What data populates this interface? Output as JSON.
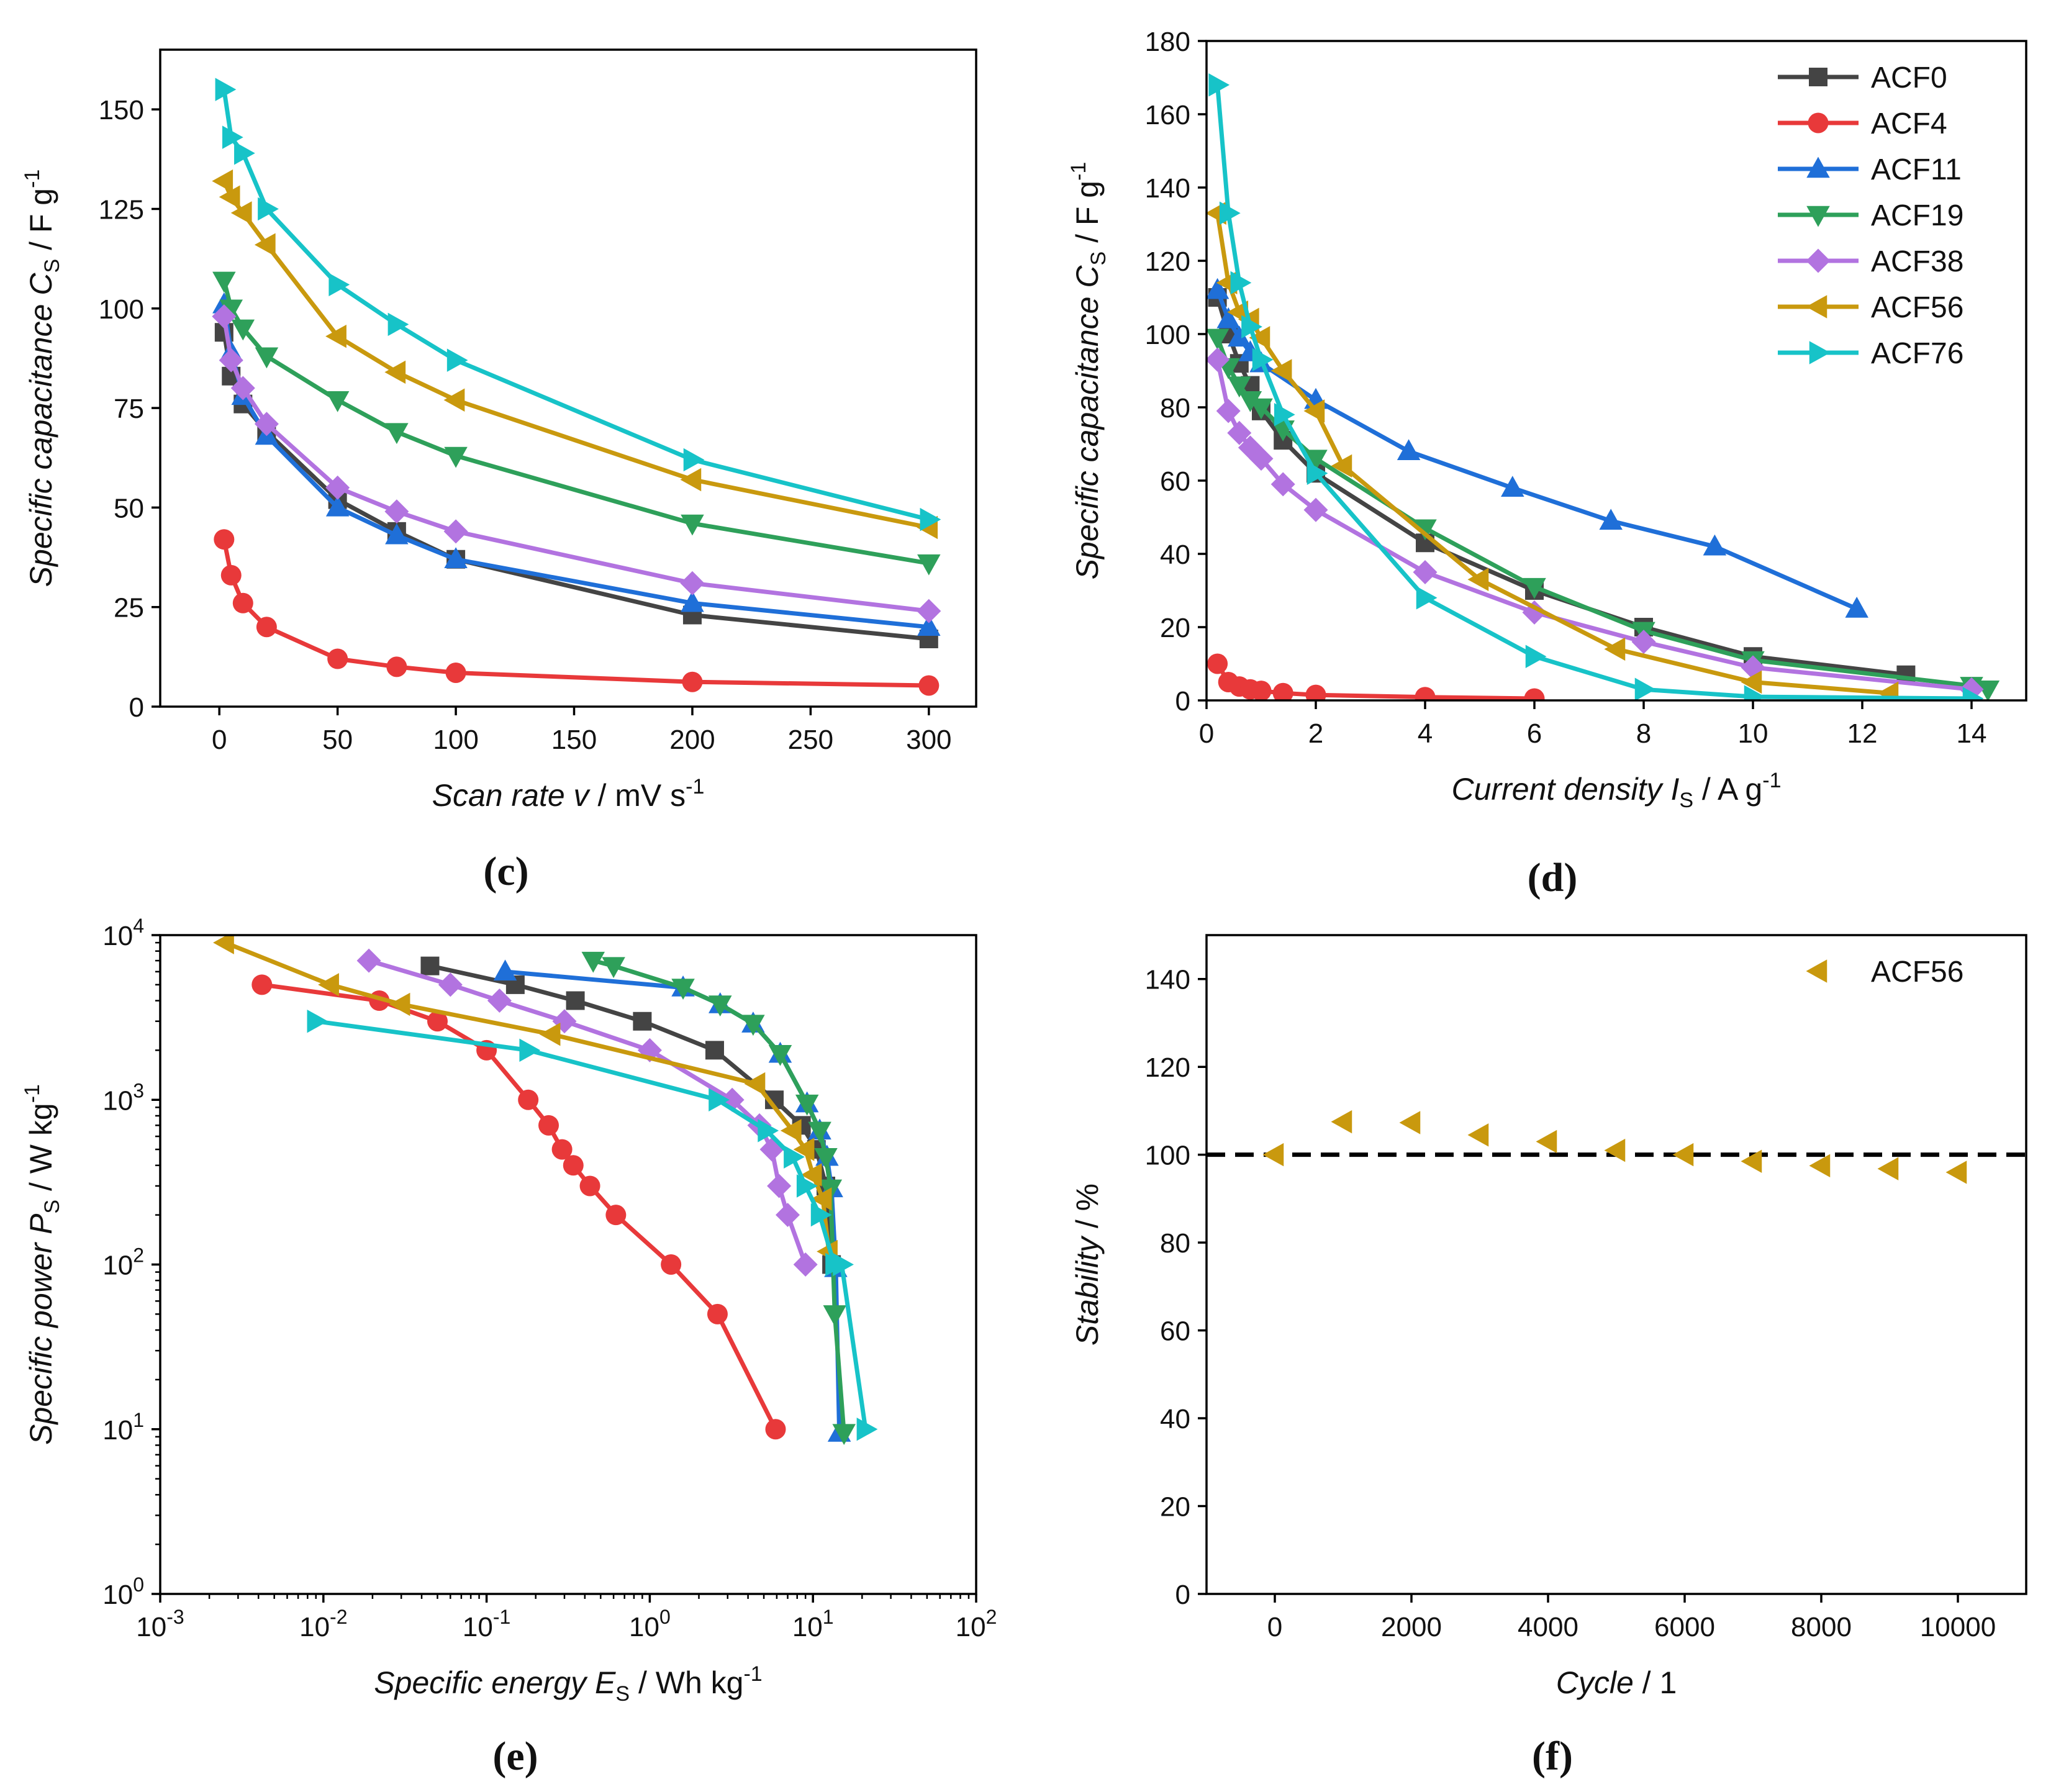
{
  "colors": {
    "ACF0": "#444444",
    "ACF4": "#e8393a",
    "ACF11": "#1f6fd8",
    "ACF19": "#2ea05a",
    "ACF38": "#b273e0",
    "ACF56": "#c9990e",
    "ACF76": "#17c3c8",
    "axis": "#000000",
    "reference_line": "#000000"
  },
  "chart_data": [
    {
      "id": "c",
      "panel_label": "(c)",
      "type": "line",
      "xlabel": {
        "prefix": "Scan rate v",
        "suffix": " / mV s",
        "sup": "-1"
      },
      "ylabel": {
        "prefix": "Specific capacitance C",
        "sub": "S",
        "suffix": " /  F g",
        "sup": "-1"
      },
      "xlim": [
        -25,
        320
      ],
      "ylim": [
        0,
        165
      ],
      "xticks": [
        0,
        50,
        100,
        150,
        200,
        250,
        300
      ],
      "yticks": [
        0,
        25,
        50,
        75,
        100,
        125,
        150
      ],
      "xtick_labels": [
        "0",
        "50",
        "100",
        "150",
        "200",
        "250",
        "300"
      ],
      "ytick_labels": [
        "0",
        "25",
        "50",
        "75",
        "100",
        "125",
        "150"
      ],
      "series": [
        {
          "name": "ACF0",
          "marker": "square",
          "x": [
            2,
            5,
            10,
            20,
            50,
            75,
            100,
            200,
            300
          ],
          "y": [
            94,
            83,
            76,
            69,
            52,
            44,
            37,
            23,
            17
          ]
        },
        {
          "name": "ACF4",
          "marker": "circle",
          "x": [
            2,
            5,
            10,
            20,
            50,
            75,
            100,
            200,
            300
          ],
          "y": [
            42,
            33,
            26,
            20,
            12,
            10,
            8.5,
            6.2,
            5.3
          ]
        },
        {
          "name": "ACF11",
          "marker": "triangle-up",
          "x": [
            2,
            5,
            10,
            20,
            50,
            75,
            100,
            200,
            300
          ],
          "y": [
            101,
            89,
            78,
            68,
            50,
            43,
            37,
            26,
            20
          ]
        },
        {
          "name": "ACF19",
          "marker": "triangle-down",
          "x": [
            2,
            5,
            10,
            20,
            50,
            75,
            100,
            200,
            300
          ],
          "y": [
            107,
            100,
            95,
            88,
            77,
            69,
            63,
            46,
            36
          ]
        },
        {
          "name": "ACF38",
          "marker": "diamond",
          "x": [
            2,
            5,
            10,
            20,
            50,
            75,
            100,
            200,
            300
          ],
          "y": [
            98,
            87,
            80,
            71,
            55,
            49,
            44,
            31,
            24
          ]
        },
        {
          "name": "ACF56",
          "marker": "triangle-left",
          "x": [
            2,
            5,
            10,
            20,
            50,
            75,
            100,
            200,
            300
          ],
          "y": [
            132,
            128,
            124,
            116,
            93,
            84,
            77,
            57,
            45
          ]
        },
        {
          "name": "ACF76",
          "marker": "triangle-right",
          "x": [
            2,
            5,
            10,
            20,
            50,
            75,
            100,
            200,
            300
          ],
          "y": [
            155,
            143,
            139,
            125,
            106,
            96,
            87,
            62,
            47
          ]
        }
      ]
    },
    {
      "id": "d",
      "panel_label": "(d)",
      "type": "line",
      "xlabel": {
        "prefix": "Current density I",
        "sub": "S",
        "suffix": " / A g",
        "sup": "-1"
      },
      "ylabel": {
        "prefix": "Specific capacitance C",
        "sub": "S",
        "suffix": " / F g",
        "sup": "-1"
      },
      "xlim": [
        0,
        15
      ],
      "ylim": [
        0,
        180
      ],
      "xticks": [
        0,
        2,
        4,
        6,
        8,
        10,
        12,
        14
      ],
      "yticks": [
        0,
        20,
        40,
        60,
        80,
        100,
        120,
        140,
        160,
        180
      ],
      "xtick_labels": [
        "0",
        "2",
        "4",
        "6",
        "8",
        "10",
        "12",
        "14"
      ],
      "ytick_labels": [
        "0",
        "20",
        "40",
        "60",
        "80",
        "100",
        "120",
        "140",
        "160",
        "180"
      ],
      "legend": {
        "position": "top-right",
        "entries": [
          "ACF0",
          "ACF4",
          "ACF11",
          "ACF19",
          "ACF38",
          "ACF56",
          "ACF76"
        ]
      },
      "series": [
        {
          "name": "ACF0",
          "marker": "square",
          "x": [
            0.2,
            0.4,
            0.6,
            0.8,
            1,
            1.4,
            2,
            4,
            6,
            8,
            10,
            12.8
          ],
          "y": [
            110,
            100,
            92,
            86,
            79,
            71,
            62,
            43,
            30,
            20,
            12,
            7
          ]
        },
        {
          "name": "ACF4",
          "marker": "circle",
          "x": [
            0.2,
            0.4,
            0.6,
            0.8,
            1,
            1.4,
            2,
            4,
            6
          ],
          "y": [
            10,
            5,
            3.8,
            3,
            2.6,
            2,
            1.5,
            0.9,
            0.5
          ]
        },
        {
          "name": "ACF11",
          "marker": "triangle-up",
          "x": [
            0.2,
            0.4,
            0.6,
            0.8,
            1,
            2,
            3.7,
            5.6,
            7.4,
            9.3,
            11.9
          ],
          "y": [
            112,
            104,
            99,
            95,
            92,
            82,
            68,
            58,
            49,
            42,
            25
          ]
        },
        {
          "name": "ACF19",
          "marker": "triangle-down",
          "x": [
            0.2,
            0.4,
            0.6,
            0.8,
            1,
            1.4,
            2,
            4,
            6,
            8,
            10,
            14,
            14.3
          ],
          "y": [
            99,
            91,
            86,
            82,
            80,
            74,
            66,
            47,
            31,
            19,
            11,
            4,
            3
          ]
        },
        {
          "name": "ACF38",
          "marker": "diamond",
          "x": [
            0.2,
            0.4,
            0.6,
            0.8,
            1,
            1.4,
            2,
            4,
            6,
            8,
            10,
            14
          ],
          "y": [
            93,
            79,
            73,
            69,
            66,
            59,
            52,
            35,
            24,
            16,
            9,
            3
          ]
        },
        {
          "name": "ACF56",
          "marker": "triangle-left",
          "x": [
            0.2,
            0.4,
            0.6,
            0.8,
            1,
            1.4,
            2,
            2.5,
            5,
            7.5,
            10,
            12.5
          ],
          "y": [
            133,
            114,
            106,
            104,
            99,
            90,
            79,
            64,
            33,
            14,
            5,
            2
          ]
        },
        {
          "name": "ACF76",
          "marker": "triangle-right",
          "x": [
            0.2,
            0.4,
            0.6,
            0.8,
            1,
            1.4,
            2,
            4,
            6,
            8,
            10,
            14
          ],
          "y": [
            168,
            133,
            114,
            102,
            93,
            78,
            62,
            28,
            12,
            3,
            1,
            0.5
          ]
        }
      ]
    },
    {
      "id": "e",
      "panel_label": "(e)",
      "type": "line",
      "xscale": "log",
      "yscale": "log",
      "xlabel": {
        "prefix": "Specific energy E",
        "sub": "S",
        "suffix": " / Wh kg",
        "sup": "-1"
      },
      "ylabel": {
        "prefix": "Specific power P",
        "sub": "S",
        "suffix": " / W kg",
        "sup": "-1"
      },
      "xlim": [
        0.001,
        100
      ],
      "ylim": [
        1,
        10000
      ],
      "xticks": [
        0.001,
        0.01,
        0.1,
        1,
        10,
        100
      ],
      "yticks": [
        1,
        10,
        100,
        1000,
        10000
      ],
      "xtick_labels": [
        [
          "10",
          "-3"
        ],
        [
          "10",
          "-2"
        ],
        [
          "10",
          "-1"
        ],
        [
          "10",
          "0"
        ],
        [
          "10",
          "1"
        ],
        [
          "10",
          "2"
        ]
      ],
      "ytick_labels": [
        [
          "10",
          "0"
        ],
        [
          "10",
          "1"
        ],
        [
          "10",
          "2"
        ],
        [
          "10",
          "3"
        ],
        [
          "10",
          "4"
        ]
      ],
      "series": [
        {
          "name": "ACF0",
          "marker": "square",
          "x": [
            0.045,
            0.15,
            0.35,
            0.9,
            2.5,
            5.8,
            8.5,
            10.5,
            12,
            13
          ],
          "y": [
            6500,
            5000,
            4000,
            3000,
            2000,
            1000,
            700,
            500,
            300,
            100
          ]
        },
        {
          "name": "ACF4",
          "marker": "circle",
          "x": [
            0.0042,
            0.022,
            0.05,
            0.1,
            0.18,
            0.24,
            0.29,
            0.34,
            0.43,
            0.62,
            1.35,
            2.6,
            5.9
          ],
          "y": [
            5000,
            4000,
            3000,
            2000,
            1000,
            700,
            500,
            400,
            300,
            200,
            100,
            50,
            10
          ]
        },
        {
          "name": "ACF11",
          "marker": "triangle-up",
          "x": [
            0.13,
            1.6,
            2.7,
            4.3,
            6.3,
            9.2,
            11,
            12.2,
            13,
            13.8,
            14.5
          ],
          "y": [
            6000,
            4800,
            3800,
            2900,
            1900,
            950,
            650,
            450,
            290,
            95,
            9.5
          ]
        },
        {
          "name": "ACF19",
          "marker": "triangle-down",
          "x": [
            0.45,
            0.6,
            1.6,
            2.7,
            4.3,
            6.3,
            9.2,
            11,
            12,
            12.8,
            13.6,
            15.5
          ],
          "y": [
            7000,
            6500,
            4800,
            3800,
            2900,
            1900,
            950,
            650,
            450,
            290,
            50,
            9.5
          ]
        },
        {
          "name": "ACF38",
          "marker": "diamond",
          "x": [
            0.019,
            0.06,
            0.12,
            0.3,
            1.0,
            3.2,
            4.7,
            5.6,
            6.2,
            7,
            9
          ],
          "y": [
            7000,
            5000,
            4000,
            3000,
            2000,
            1000,
            700,
            500,
            300,
            200,
            100
          ]
        },
        {
          "name": "ACF56",
          "marker": "triangle-left",
          "x": [
            0.0025,
            0.011,
            0.03,
            0.25,
            4.5,
            7.5,
            9,
            10,
            11.5,
            12.5
          ],
          "y": [
            9000,
            5000,
            3800,
            2500,
            1250,
            650,
            500,
            350,
            250,
            120
          ]
        },
        {
          "name": "ACF76",
          "marker": "triangle-right",
          "x": [
            0.009,
            0.18,
            2.6,
            5.2,
            7.5,
            9,
            11,
            13.5,
            15,
            21
          ],
          "y": [
            3000,
            2000,
            1000,
            650,
            450,
            300,
            200,
            100,
            100,
            10
          ]
        }
      ]
    },
    {
      "id": "f",
      "panel_label": "(f)",
      "type": "scatter",
      "xlabel": {
        "prefix": "Cycle",
        "sub": "",
        "suffix": " / 1",
        "sup": ""
      },
      "ylabel": {
        "prefix": "Stability",
        "sub": "",
        "suffix": " / %",
        "sup": ""
      },
      "xlim": [
        -1000,
        11000
      ],
      "ylim": [
        0,
        150
      ],
      "xticks": [
        0,
        2000,
        4000,
        6000,
        8000,
        10000
      ],
      "yticks": [
        0,
        20,
        40,
        60,
        80,
        100,
        120,
        140
      ],
      "xtick_labels": [
        "0",
        "2000",
        "4000",
        "6000",
        "8000",
        "10000"
      ],
      "ytick_labels": [
        "0",
        "20",
        "40",
        "60",
        "80",
        "100",
        "120",
        "140"
      ],
      "legend": {
        "position": "top-right",
        "entries": [
          "ACF56"
        ]
      },
      "reference_line": {
        "y": 100,
        "style": "dashed"
      },
      "series": [
        {
          "name": "ACF56",
          "marker": "triangle-left",
          "x": [
            0,
            1000,
            2000,
            3000,
            4000,
            5000,
            6000,
            7000,
            8000,
            9000,
            10000
          ],
          "y": [
            100,
            107.5,
            107.3,
            104.5,
            103,
            101,
            100,
            98.5,
            97.5,
            96.8,
            96
          ]
        }
      ]
    }
  ]
}
